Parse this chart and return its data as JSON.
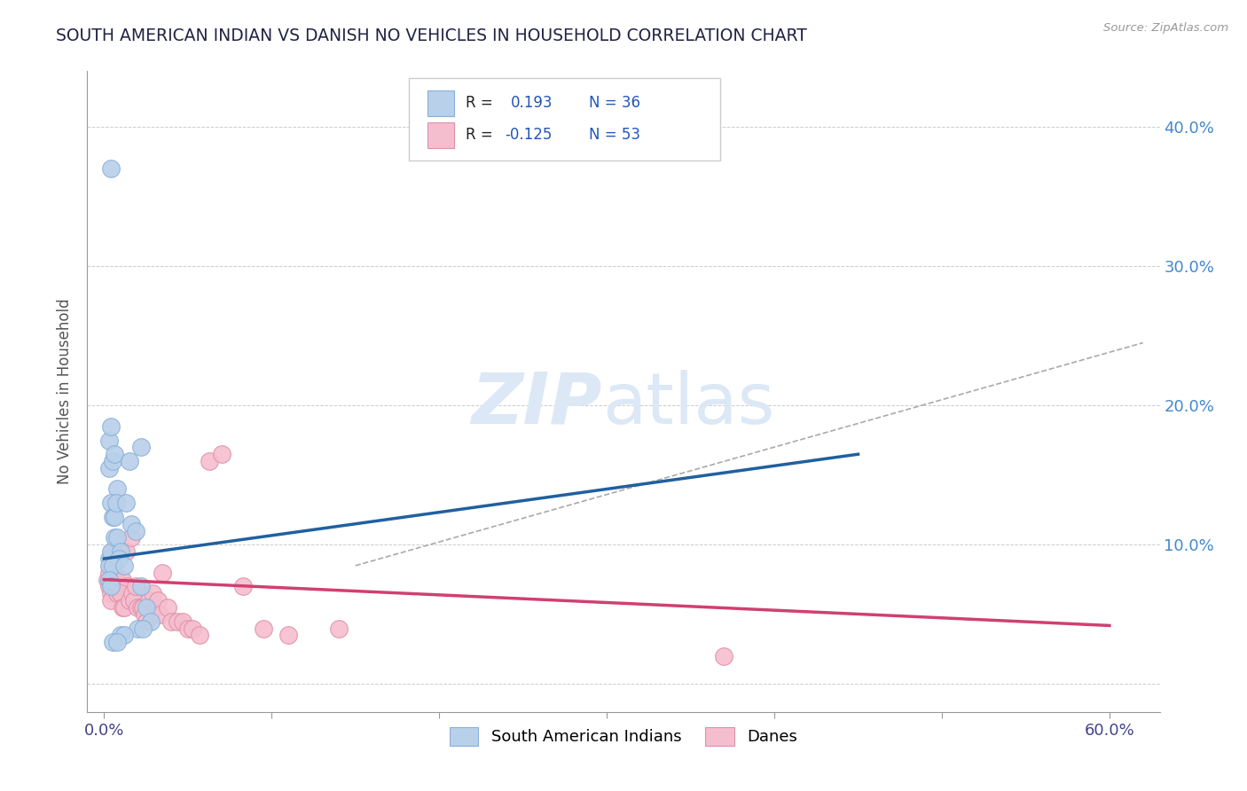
{
  "title": "SOUTH AMERICAN INDIAN VS DANISH NO VEHICLES IN HOUSEHOLD CORRELATION CHART",
  "source": "Source: ZipAtlas.com",
  "ylabel": "No Vehicles in Household",
  "x_ticks": [
    0.0,
    0.1,
    0.2,
    0.3,
    0.4,
    0.5,
    0.6
  ],
  "x_tick_labels_show": [
    "0.0%",
    "",
    "",
    "",
    "",
    "",
    "60.0%"
  ],
  "y_ticks": [
    0.0,
    0.1,
    0.2,
    0.3,
    0.4
  ],
  "right_y_tick_labels": [
    "",
    "10.0%",
    "20.0%",
    "30.0%",
    "40.0%"
  ],
  "xlim": [
    -0.01,
    0.63
  ],
  "ylim": [
    -0.02,
    0.44
  ],
  "legend_label1": "South American Indians",
  "legend_label2": "Danes",
  "blue_color": "#b8d0ea",
  "blue_edge_color": "#8ab0d8",
  "pink_color": "#f5bece",
  "pink_edge_color": "#e090a8",
  "blue_line_color": "#2060a0",
  "pink_line_color": "#d04070",
  "grid_color": "#cccccc",
  "title_color": "#222244",
  "watermark_color": "#dce8f5",
  "blue_scatter_x": [
    0.003,
    0.004,
    0.003,
    0.005,
    0.006,
    0.008,
    0.004,
    0.005,
    0.003,
    0.003,
    0.004,
    0.006,
    0.008,
    0.01,
    0.006,
    0.007,
    0.009,
    0.005,
    0.003,
    0.004,
    0.012,
    0.015,
    0.013,
    0.016,
    0.019,
    0.022,
    0.025,
    0.028,
    0.01,
    0.02,
    0.023,
    0.012,
    0.005,
    0.008,
    0.022,
    0.004
  ],
  "blue_scatter_y": [
    0.175,
    0.185,
    0.155,
    0.16,
    0.165,
    0.14,
    0.13,
    0.12,
    0.09,
    0.085,
    0.095,
    0.105,
    0.105,
    0.095,
    0.12,
    0.13,
    0.09,
    0.085,
    0.075,
    0.07,
    0.085,
    0.16,
    0.13,
    0.115,
    0.11,
    0.07,
    0.055,
    0.045,
    0.035,
    0.04,
    0.04,
    0.035,
    0.03,
    0.03,
    0.17,
    0.37
  ],
  "pink_scatter_x": [
    0.002,
    0.003,
    0.004,
    0.004,
    0.003,
    0.005,
    0.006,
    0.006,
    0.008,
    0.007,
    0.004,
    0.005,
    0.005,
    0.006,
    0.009,
    0.01,
    0.011,
    0.013,
    0.014,
    0.016,
    0.018,
    0.01,
    0.011,
    0.012,
    0.015,
    0.017,
    0.018,
    0.019,
    0.02,
    0.022,
    0.023,
    0.024,
    0.025,
    0.027,
    0.029,
    0.031,
    0.032,
    0.033,
    0.035,
    0.038,
    0.04,
    0.044,
    0.047,
    0.05,
    0.053,
    0.057,
    0.063,
    0.07,
    0.083,
    0.095,
    0.11,
    0.14,
    0.37
  ],
  "pink_scatter_y": [
    0.075,
    0.07,
    0.065,
    0.06,
    0.08,
    0.075,
    0.085,
    0.07,
    0.065,
    0.075,
    0.085,
    0.09,
    0.095,
    0.08,
    0.07,
    0.065,
    0.075,
    0.095,
    0.07,
    0.105,
    0.06,
    0.065,
    0.055,
    0.055,
    0.06,
    0.065,
    0.06,
    0.07,
    0.055,
    0.055,
    0.055,
    0.05,
    0.045,
    0.06,
    0.065,
    0.055,
    0.06,
    0.05,
    0.08,
    0.055,
    0.045,
    0.045,
    0.045,
    0.04,
    0.04,
    0.035,
    0.16,
    0.165,
    0.07,
    0.04,
    0.035,
    0.04,
    0.02
  ],
  "blue_line_x": [
    0.0,
    0.45
  ],
  "blue_line_y": [
    0.09,
    0.165
  ],
  "pink_line_x": [
    0.0,
    0.6
  ],
  "pink_line_y": [
    0.075,
    0.042
  ],
  "gray_dash_line_x": [
    0.15,
    0.62
  ],
  "gray_dash_line_y": [
    0.085,
    0.245
  ]
}
